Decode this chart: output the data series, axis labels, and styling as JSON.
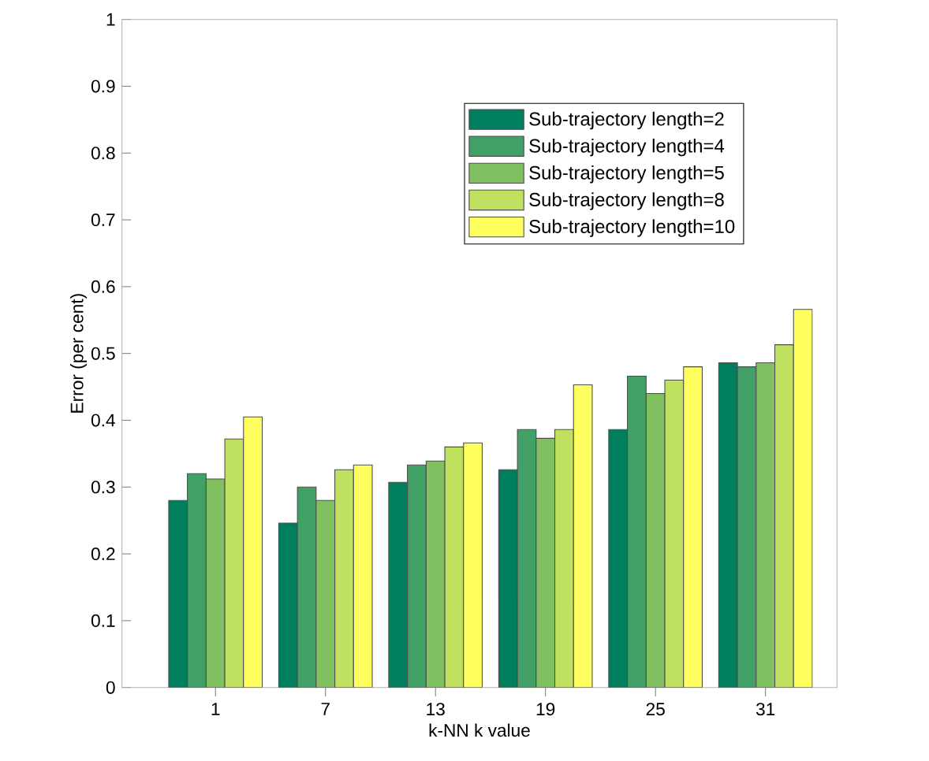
{
  "chart_data": {
    "type": "bar",
    "xlabel": "k-NN k value",
    "ylabel": "Error (per cent)",
    "categories": [
      "1",
      "7",
      "13",
      "19",
      "25",
      "31"
    ],
    "series": [
      {
        "name": "Sub-trajectory length=2",
        "color": "#007f5f",
        "values": [
          0.28,
          0.246,
          0.307,
          0.326,
          0.386,
          0.486
        ]
      },
      {
        "name": "Sub-trajectory length=4",
        "color": "#40a065",
        "values": [
          0.32,
          0.3,
          0.333,
          0.386,
          0.466,
          0.48
        ]
      },
      {
        "name": "Sub-trajectory length=5",
        "color": "#80c060",
        "values": [
          0.312,
          0.28,
          0.339,
          0.373,
          0.44,
          0.486
        ]
      },
      {
        "name": "Sub-trajectory length=8",
        "color": "#c0e060",
        "values": [
          0.372,
          0.326,
          0.36,
          0.386,
          0.46,
          0.513
        ]
      },
      {
        "name": "Sub-trajectory length=10",
        "color": "#ffff60",
        "values": [
          0.405,
          0.333,
          0.366,
          0.453,
          0.48,
          0.566
        ]
      }
    ],
    "ylim": [
      0,
      1
    ],
    "yticks": [
      0,
      0.1,
      0.2,
      0.3,
      0.4,
      0.5,
      0.6,
      0.7,
      0.8,
      0.9,
      1
    ],
    "legend": "top right",
    "grid": false
  }
}
